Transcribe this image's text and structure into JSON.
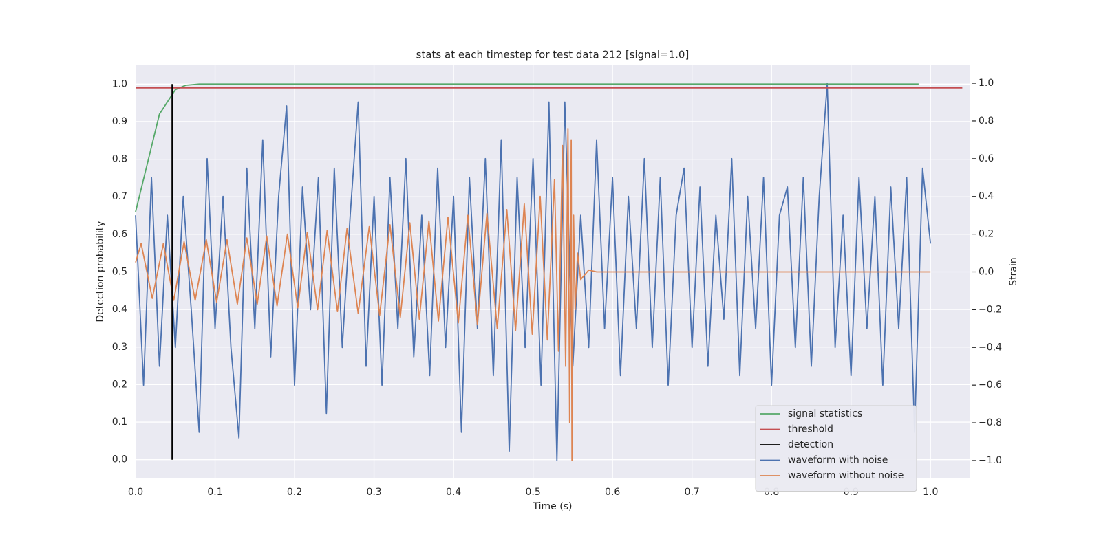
{
  "chart_data": {
    "type": "line",
    "title": "stats at each timestep for test data 212 [signal=1.0]",
    "xlabel": "Time (s)",
    "ylabel": "Detection probability",
    "y2label": "Strain",
    "xlim": [
      0,
      1.05
    ],
    "ylim": [
      -0.05,
      1.05
    ],
    "y2lim": [
      -1.095,
      1.095
    ],
    "xticks": [
      {
        "value": 0,
        "label": "0.0"
      },
      0.1,
      0.2,
      0.3,
      0.4,
      0.5,
      0.6,
      0.7,
      0.8,
      0.9,
      {
        "value": 1,
        "label": "1.0"
      }
    ],
    "yticks": [
      {
        "value": 0,
        "label": "0.0"
      },
      0.1,
      0.2,
      0.3,
      0.4,
      0.5,
      0.6,
      0.7,
      0.8,
      0.9,
      {
        "value": 1,
        "label": "1.0"
      }
    ],
    "y2ticks": [
      {
        "value": -1,
        "label": "−1.0"
      },
      {
        "value": -0.8,
        "label": "−0.8"
      },
      {
        "value": -0.6,
        "label": "−0.6"
      },
      {
        "value": -0.4,
        "label": "−0.4"
      },
      {
        "value": -0.2,
        "label": "−0.2"
      },
      {
        "value": 0,
        "label": "0.0"
      },
      0.2,
      0.4,
      0.6,
      0.8,
      {
        "value": 1,
        "label": "1.0"
      }
    ],
    "grid": true,
    "legend": "lower right",
    "series": [
      {
        "name": "signal statistics",
        "color": "#55a868",
        "x": [
          0,
          0.03,
          0.05,
          0.063,
          0.08,
          0.985
        ],
        "values": [
          0.66,
          0.92,
          0.985,
          0.997,
          1.0,
          1.0
        ]
      },
      {
        "name": "threshold",
        "color": "#c44e52",
        "x": [
          0,
          1.04
        ],
        "values": [
          0.99,
          0.99
        ]
      },
      {
        "name": "detection",
        "color": "#000000",
        "x": [
          0.046,
          0.046
        ],
        "values": [
          0,
          1.0
        ]
      },
      {
        "name": "waveform with noise",
        "color": "#4c72b0",
        "axis": "y2",
        "x": [
          0,
          0.01,
          0.02,
          0.03,
          0.04,
          0.05,
          0.06,
          0.07,
          0.08,
          0.09,
          0.1,
          0.11,
          0.12,
          0.13,
          0.14,
          0.15,
          0.16,
          0.17,
          0.18,
          0.19,
          0.2,
          0.21,
          0.22,
          0.23,
          0.24,
          0.25,
          0.26,
          0.27,
          0.28,
          0.29,
          0.3,
          0.31,
          0.32,
          0.33,
          0.34,
          0.35,
          0.36,
          0.37,
          0.38,
          0.39,
          0.4,
          0.41,
          0.42,
          0.43,
          0.44,
          0.45,
          0.46,
          0.47,
          0.48,
          0.49,
          0.5,
          0.51,
          0.52,
          0.53,
          0.54,
          0.55,
          0.56,
          0.57,
          0.58,
          0.59,
          0.6,
          0.61,
          0.62,
          0.63,
          0.64,
          0.65,
          0.66,
          0.67,
          0.68,
          0.69,
          0.7,
          0.71,
          0.72,
          0.73,
          0.74,
          0.75,
          0.76,
          0.77,
          0.78,
          0.79,
          0.8,
          0.81,
          0.82,
          0.83,
          0.84,
          0.85,
          0.86,
          0.87,
          0.88,
          0.89,
          0.9,
          0.91,
          0.92,
          0.93,
          0.94,
          0.95,
          0.96,
          0.97,
          0.98,
          0.99,
          1.0
        ],
        "values": [
          0.3,
          -0.6,
          0.5,
          -0.5,
          0.3,
          -0.4,
          0.4,
          -0.2,
          -0.85,
          0.6,
          -0.3,
          0.4,
          -0.4,
          -0.88,
          0.55,
          -0.3,
          0.7,
          -0.45,
          0.4,
          0.88,
          -0.6,
          0.45,
          -0.2,
          0.5,
          -0.75,
          0.55,
          -0.4,
          0.3,
          0.9,
          -0.5,
          0.4,
          -0.6,
          0.5,
          -0.3,
          0.6,
          -0.45,
          0.3,
          -0.55,
          0.55,
          -0.4,
          0.4,
          -0.85,
          0.5,
          -0.3,
          0.6,
          -0.55,
          0.7,
          -0.95,
          0.5,
          -0.4,
          0.6,
          -0.6,
          0.9,
          -1.0,
          0.9,
          -0.5,
          0.3,
          -0.4,
          0.7,
          -0.3,
          0.5,
          -0.55,
          0.4,
          -0.3,
          0.6,
          -0.4,
          0.5,
          -0.6,
          0.3,
          0.55,
          -0.4,
          0.45,
          -0.5,
          0.3,
          -0.25,
          0.6,
          -0.55,
          0.4,
          -0.3,
          0.5,
          -0.6,
          0.3,
          0.45,
          -0.4,
          0.5,
          -0.5,
          0.4,
          1.0,
          -0.4,
          0.3,
          -0.55,
          0.5,
          -0.3,
          0.4,
          -0.6,
          0.45,
          -0.3,
          0.5,
          -0.85,
          0.55,
          0.15
        ]
      },
      {
        "name": "waveform without noise",
        "color": "#dd8452",
        "axis": "y2",
        "x": [
          0,
          0.007,
          0.021,
          0.035,
          0.048,
          0.061,
          0.075,
          0.089,
          0.102,
          0.115,
          0.128,
          0.14,
          0.153,
          0.165,
          0.178,
          0.191,
          0.204,
          0.216,
          0.229,
          0.241,
          0.254,
          0.266,
          0.28,
          0.294,
          0.307,
          0.32,
          0.333,
          0.345,
          0.357,
          0.369,
          0.381,
          0.393,
          0.406,
          0.418,
          0.43,
          0.442,
          0.455,
          0.467,
          0.478,
          0.489,
          0.499,
          0.509,
          0.518,
          0.527,
          0.532,
          0.537,
          0.541,
          0.544,
          0.546,
          0.548,
          0.549,
          0.551,
          0.553,
          0.556,
          0.56,
          0.57,
          0.58,
          1.0
        ],
        "values": [
          0.05,
          0.15,
          -0.14,
          0.15,
          -0.15,
          0.16,
          -0.15,
          0.17,
          -0.16,
          0.17,
          -0.17,
          0.18,
          -0.17,
          0.19,
          -0.18,
          0.2,
          -0.19,
          0.21,
          -0.2,
          0.22,
          -0.21,
          0.23,
          -0.22,
          0.24,
          -0.23,
          0.25,
          -0.24,
          0.26,
          -0.25,
          0.27,
          -0.26,
          0.29,
          -0.27,
          0.3,
          -0.28,
          0.31,
          -0.3,
          0.33,
          -0.31,
          0.36,
          -0.33,
          0.4,
          -0.36,
          0.49,
          -0.42,
          0.67,
          -0.5,
          0.76,
          -0.8,
          0.7,
          -1.0,
          0.3,
          -0.2,
          0.1,
          -0.04,
          0.01,
          0,
          0
        ]
      }
    ]
  }
}
